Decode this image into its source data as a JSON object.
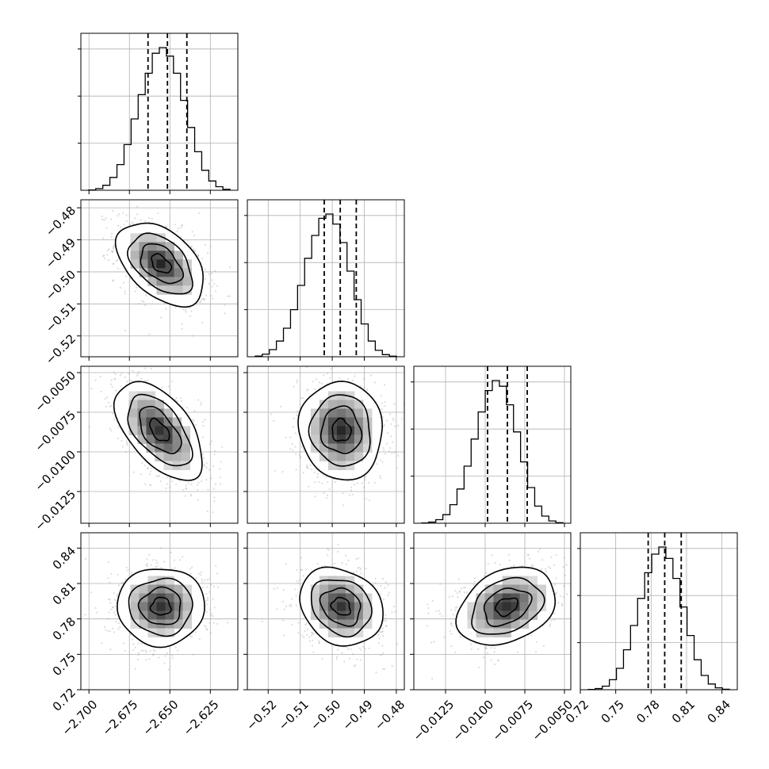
{
  "chart_data": {
    "type": "corner",
    "params": [
      {
        "range": [
          -2.705,
          -2.608
        ],
        "ticks": [
          -2.7,
          -2.675,
          -2.65,
          -2.625
        ],
        "tick_labels": [
          "−2.700",
          "−2.675",
          "−2.650",
          "−2.625"
        ],
        "quantiles": [
          -2.6635,
          -2.6515,
          -2.6395
        ],
        "hist": [
          0.2,
          1.2,
          3.5,
          9,
          18,
          32,
          50,
          67,
          82,
          96,
          100,
          94,
          82,
          63,
          44,
          27,
          14,
          6.5,
          2.5,
          0.7
        ]
      },
      {
        "range": [
          -0.5265,
          -0.4775
        ],
        "ticks": [
          -0.52,
          -0.51,
          -0.5,
          -0.49,
          -0.48
        ],
        "tick_labels": [
          "−0.52",
          "−0.51",
          "−0.50",
          "−0.49",
          "−0.48"
        ],
        "quantiles": [
          -0.5025,
          -0.4975,
          -0.4925
        ],
        "hist": [
          0.5,
          1.8,
          5,
          11,
          20,
          33,
          50,
          69,
          85,
          97,
          100,
          93,
          80,
          60,
          40,
          23,
          11,
          4.5,
          1.5,
          0.4
        ]
      },
      {
        "range": [
          -0.0145,
          -0.0046
        ],
        "ticks": [
          -0.0125,
          -0.01,
          -0.0075,
          -0.005
        ],
        "tick_labels": [
          "−0.0125",
          "−0.0100",
          "−0.0075",
          "−0.0050"
        ],
        "quantiles": [
          -0.00985,
          -0.0086,
          -0.00735
        ],
        "hist": [
          0.2,
          0.8,
          2.5,
          6,
          13,
          24,
          40,
          59,
          78,
          93,
          100,
          96,
          83,
          64,
          43,
          25,
          12,
          5,
          1.6,
          0.4
        ]
      },
      {
        "range": [
          0.72,
          0.853
        ],
        "ticks": [
          0.72,
          0.75,
          0.78,
          0.81,
          0.84
        ],
        "tick_labels": [
          "0.72",
          "0.75",
          "0.78",
          "0.81",
          "0.84"
        ],
        "quantiles": [
          0.7775,
          0.7915,
          0.8055
        ],
        "hist": [
          0.2,
          0.8,
          2.5,
          7,
          15,
          28,
          45,
          64,
          82,
          95,
          100,
          92,
          78,
          58,
          38,
          21,
          10,
          4,
          1.3,
          0.3
        ]
      }
    ],
    "pairs": [
      {
        "row": 1,
        "col": 0,
        "center": [
          -2.6555,
          -0.4975
        ],
        "sigma": [
          0.0135,
          0.0065
        ],
        "rho": -0.45
      },
      {
        "row": 2,
        "col": 0,
        "center": [
          -2.6565,
          -0.00865
        ],
        "sigma": [
          0.0135,
          0.00155
        ],
        "rho": -0.55
      },
      {
        "row": 2,
        "col": 1,
        "center": [
          -0.4972,
          -0.00865
        ],
        "sigma": [
          0.0065,
          0.00155
        ],
        "rho": -0.05
      },
      {
        "row": 3,
        "col": 0,
        "center": [
          -2.6555,
          0.7905
        ],
        "sigma": [
          0.0135,
          0.0165
        ],
        "rho": 0.0
      },
      {
        "row": 3,
        "col": 1,
        "center": [
          -0.4972,
          0.7905
        ],
        "sigma": [
          0.0065,
          0.0165
        ],
        "rho": -0.2
      },
      {
        "row": 3,
        "col": 2,
        "center": [
          -0.00865,
          0.7905
        ],
        "sigma": [
          0.00155,
          0.0165
        ],
        "rho": 0.3
      }
    ],
    "grid": true
  }
}
